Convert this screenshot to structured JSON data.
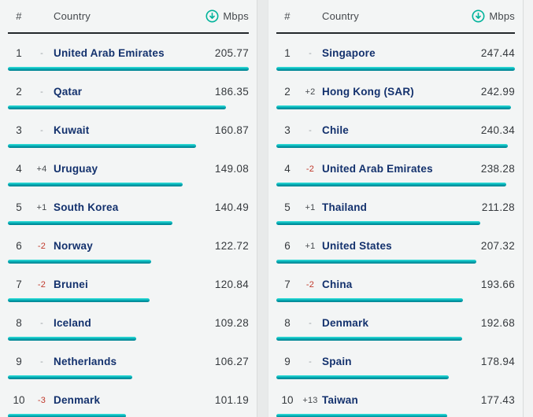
{
  "colors": {
    "accent_teal": "#00b39b",
    "bar_gradient_top": "#3ae4dc",
    "bar_gradient_bottom": "#007f8d",
    "country_text": "#13316d",
    "negative_change": "#c0392b",
    "neutral_change": "#9ba1a5",
    "positive_change": "#45494d",
    "header_rule": "#23282c",
    "panel_background": "#f3f5f5"
  },
  "header": {
    "rank": "#",
    "country": "Country",
    "unit": "Mbps",
    "unit_icon": "download-circle-icon"
  },
  "chart_data": [
    {
      "type": "bar",
      "orientation": "horizontal",
      "title": "",
      "unit": "Mbps",
      "legend": false,
      "grid": false,
      "rank": [
        1,
        2,
        3,
        4,
        5,
        6,
        7,
        8,
        9,
        10
      ],
      "change": [
        "-",
        "-",
        "-",
        "+4",
        "+1",
        "-2",
        "-2",
        "-",
        "-",
        "-3"
      ],
      "categories": [
        "United Arab Emirates",
        "Qatar",
        "Kuwait",
        "Uruguay",
        "South Korea",
        "Norway",
        "Brunei",
        "Iceland",
        "Netherlands",
        "Denmark"
      ],
      "values": [
        205.77,
        186.35,
        160.87,
        149.08,
        140.49,
        122.72,
        120.84,
        109.28,
        106.27,
        101.19
      ],
      "bar_scale": "relative-to-table-max"
    },
    {
      "type": "bar",
      "orientation": "horizontal",
      "title": "",
      "unit": "Mbps",
      "legend": false,
      "grid": false,
      "rank": [
        1,
        2,
        3,
        4,
        5,
        6,
        7,
        8,
        9,
        10
      ],
      "change": [
        "-",
        "+2",
        "-",
        "-2",
        "+1",
        "+1",
        "-2",
        "-",
        "-",
        "+13"
      ],
      "categories": [
        "Singapore",
        "Hong Kong (SAR)",
        "Chile",
        "United Arab Emirates",
        "Thailand",
        "United States",
        "China",
        "Denmark",
        "Spain",
        "Taiwan"
      ],
      "values": [
        247.44,
        242.99,
        240.34,
        238.28,
        211.28,
        207.32,
        193.66,
        192.68,
        178.94,
        177.43
      ],
      "bar_scale": "relative-to-table-max"
    }
  ]
}
